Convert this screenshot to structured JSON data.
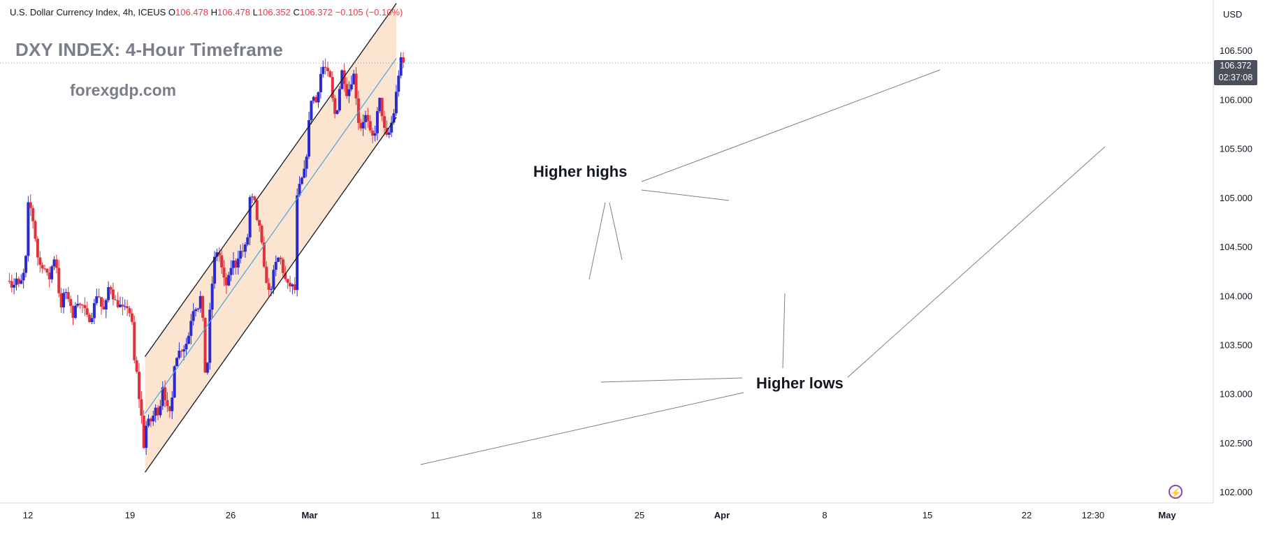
{
  "header": {
    "symbol_line": "U.S. Dollar Currency Index, 4h, ICEUS",
    "open_label": "O",
    "open": "106.478",
    "high_label": "H",
    "high": "106.478",
    "low_label": "L",
    "low": "106.352",
    "close_label": "C",
    "close": "106.372",
    "change": "−0.105 (−0.10%)"
  },
  "title": "DXY INDEX: 4-Hour Timeframe",
  "watermark": "forexgdp.com",
  "currency": "USD",
  "last_price": {
    "value": "106.372",
    "countdown": "02:37:08"
  },
  "annotations": {
    "higher_highs": "Higher highs",
    "higher_lows": "Higher lows"
  },
  "colors": {
    "up": "#2a2ad0",
    "down": "#e0323c",
    "channel_fill": "#fbe0c8",
    "midline": "#4aa3e0",
    "channel_line": "#131722"
  },
  "chart_data": {
    "type": "candlestick",
    "instrument": "U.S. Dollar Currency Index",
    "timeframe": "4h",
    "title": "DXY INDEX: 4-Hour Timeframe",
    "y_axis": {
      "ticks": [
        "106.500",
        "106.000",
        "105.500",
        "105.000",
        "104.500",
        "104.000",
        "103.500",
        "103.000",
        "102.500",
        "102.000"
      ],
      "range": [
        101.93,
        107.0
      ]
    },
    "x_axis": {
      "ticks": [
        "12",
        "19",
        "26",
        "Mar",
        "11",
        "18",
        "25",
        "Apr",
        "8",
        "15",
        "22",
        "12:30",
        "May"
      ]
    },
    "price_path": [
      [
        0,
        104.15
      ],
      [
        0.5,
        104.18
      ],
      [
        1,
        104.05
      ],
      [
        1.5,
        104.2
      ],
      [
        2,
        104.1
      ],
      [
        2.5,
        104.15
      ],
      [
        3,
        104.25
      ],
      [
        3.3,
        104.4
      ],
      [
        3.5,
        104.9
      ],
      [
        3.8,
        104.95
      ],
      [
        4.3,
        104.85
      ],
      [
        4.8,
        104.65
      ],
      [
        5.3,
        104.4
      ],
      [
        5.8,
        104.3
      ],
      [
        6.3,
        104.3
      ],
      [
        6.8,
        104.25
      ],
      [
        7.3,
        104.15
      ],
      [
        7.8,
        104.3
      ],
      [
        8.3,
        104.4
      ],
      [
        8.6,
        104.3
      ],
      [
        8.9,
        104.1
      ],
      [
        9.4,
        103.85
      ],
      [
        9.9,
        104.05
      ],
      [
        10.4,
        104.0
      ],
      [
        11,
        103.95
      ],
      [
        11.4,
        103.7
      ],
      [
        11.7,
        103.9
      ],
      [
        12.2,
        103.95
      ],
      [
        12.7,
        103.9
      ],
      [
        13.3,
        103.9
      ],
      [
        13.8,
        103.8
      ],
      [
        14.3,
        103.75
      ],
      [
        14.8,
        103.8
      ],
      [
        15.3,
        103.95
      ],
      [
        15.8,
        104.05
      ],
      [
        16.3,
        103.9
      ],
      [
        16.8,
        103.85
      ],
      [
        17.3,
        103.95
      ],
      [
        17.8,
        104.15
      ],
      [
        18.3,
        104.0
      ],
      [
        18.8,
        103.95
      ],
      [
        19.3,
        103.9
      ],
      [
        19.8,
        103.9
      ],
      [
        20.3,
        103.85
      ],
      [
        20.8,
        103.9
      ],
      [
        21.2,
        103.85
      ],
      [
        21.7,
        103.75
      ],
      [
        22.1,
        103.35
      ],
      [
        22.6,
        103.2
      ],
      [
        22.9,
        103.0
      ],
      [
        23.2,
        102.8
      ],
      [
        23.5,
        102.75
      ],
      [
        23.8,
        102.45
      ],
      [
        24,
        102.6
      ],
      [
        24.4,
        102.75
      ],
      [
        24.8,
        102.7
      ],
      [
        25.3,
        102.75
      ],
      [
        25.8,
        102.85
      ],
      [
        26.3,
        102.8
      ],
      [
        26.7,
        102.9
      ],
      [
        27,
        103.1
      ],
      [
        27.5,
        102.95
      ],
      [
        27.9,
        102.85
      ],
      [
        28.3,
        102.8
      ],
      [
        28.7,
        102.95
      ],
      [
        29.1,
        103.3
      ],
      [
        29.6,
        103.4
      ],
      [
        30.1,
        103.45
      ],
      [
        30.6,
        103.45
      ],
      [
        31.1,
        103.5
      ],
      [
        31.6,
        103.6
      ],
      [
        32.1,
        103.8
      ],
      [
        32.6,
        103.9
      ],
      [
        33.1,
        103.85
      ],
      [
        33.6,
        104.0
      ],
      [
        34,
        103.85
      ],
      [
        34.2,
        103.35
      ],
      [
        34.5,
        103.2
      ],
      [
        34.8,
        103.2
      ],
      [
        35,
        103.6
      ],
      [
        35.4,
        103.95
      ],
      [
        35.8,
        104.2
      ],
      [
        36.2,
        104.45
      ],
      [
        36.6,
        104.45
      ],
      [
        37,
        104.4
      ],
      [
        37.4,
        104.25
      ],
      [
        37.8,
        104.15
      ],
      [
        38.2,
        104.1
      ],
      [
        38.6,
        104.2
      ],
      [
        39,
        104.3
      ],
      [
        39.4,
        104.35
      ],
      [
        39.8,
        104.3
      ],
      [
        40.2,
        104.4
      ],
      [
        40.6,
        104.45
      ],
      [
        41,
        104.45
      ],
      [
        41.4,
        104.5
      ],
      [
        41.8,
        104.55
      ],
      [
        42.1,
        105.0
      ],
      [
        42.6,
        105.0
      ],
      [
        43.1,
        104.95
      ],
      [
        43.4,
        104.75
      ],
      [
        43.8,
        104.75
      ],
      [
        44.2,
        104.6
      ],
      [
        44.5,
        104.35
      ],
      [
        44.9,
        104.2
      ],
      [
        45.3,
        104.1
      ],
      [
        45.7,
        104.0
      ],
      [
        46.1,
        104.15
      ],
      [
        46.5,
        104.3
      ],
      [
        46.9,
        104.35
      ],
      [
        47.3,
        104.4
      ],
      [
        47.7,
        104.35
      ],
      [
        48.1,
        104.2
      ],
      [
        48.5,
        104.15
      ],
      [
        48.9,
        104.1
      ],
      [
        49.3,
        104.1
      ],
      [
        49.7,
        104.1
      ],
      [
        50.1,
        104.05
      ],
      [
        50.3,
        104.95
      ],
      [
        50.7,
        105.1
      ],
      [
        51.1,
        105.15
      ],
      [
        51.5,
        105.25
      ],
      [
        51.9,
        105.3
      ],
      [
        52.3,
        105.6
      ],
      [
        52.7,
        105.95
      ],
      [
        53.1,
        106.05
      ],
      [
        53.5,
        106.0
      ],
      [
        53.9,
        105.95
      ],
      [
        54.3,
        106.2
      ],
      [
        54.7,
        106.3
      ],
      [
        55.1,
        106.35
      ],
      [
        55.5,
        106.3
      ],
      [
        55.9,
        106.25
      ],
      [
        56.3,
        106.2
      ],
      [
        56.6,
        106.0
      ],
      [
        57,
        105.85
      ],
      [
        57.4,
        105.9
      ],
      [
        57.8,
        106.1
      ],
      [
        58.2,
        106.3
      ],
      [
        58.6,
        106.2
      ],
      [
        59,
        106.05
      ],
      [
        59.4,
        106.1
      ],
      [
        59.8,
        106.15
      ],
      [
        60.2,
        106.3
      ],
      [
        60.6,
        106.1
      ],
      [
        61,
        105.8
      ],
      [
        61.4,
        105.7
      ],
      [
        61.8,
        105.75
      ],
      [
        62.2,
        105.85
      ],
      [
        62.6,
        105.8
      ],
      [
        63,
        105.7
      ],
      [
        63.4,
        105.6
      ],
      [
        63.8,
        105.65
      ],
      [
        64.2,
        105.7
      ],
      [
        64.6,
        106.05
      ],
      [
        65,
        105.95
      ],
      [
        65.4,
        105.75
      ],
      [
        65.8,
        105.65
      ],
      [
        66.2,
        105.6
      ],
      [
        66.6,
        105.7
      ],
      [
        67,
        105.8
      ],
      [
        67.4,
        105.9
      ],
      [
        67.8,
        106.15
      ],
      [
        68.2,
        106.3
      ],
      [
        68.6,
        106.45
      ],
      [
        68.9,
        106.37
      ]
    ],
    "channel": {
      "upper": [
        [
          24,
          103.38
        ],
        [
          67.7,
          106.98
        ]
      ],
      "lower": [
        [
          24,
          102.2
        ],
        [
          67.7,
          105.82
        ]
      ],
      "mid": [
        [
          24,
          102.8
        ],
        [
          67.7,
          106.42
        ]
      ]
    },
    "annotations": [
      "Higher highs",
      "Higher lows"
    ],
    "last_price": 106.372,
    "legend": "none",
    "grid": false
  }
}
